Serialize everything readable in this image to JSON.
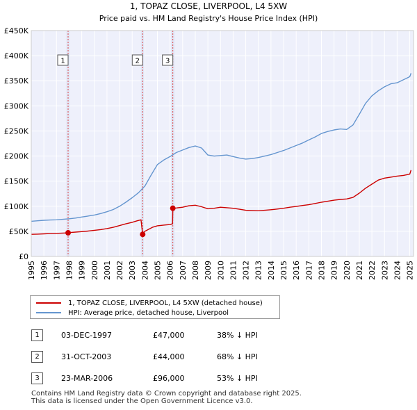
{
  "chart_data": {
    "type": "line",
    "title": "1, TOPAZ CLOSE, LIVERPOOL, L4 5XW",
    "subtitle": "Price paid vs. HM Land Registry's House Price Index (HPI)",
    "xlim": [
      1995,
      2025.3
    ],
    "ylim": [
      0,
      450000
    ],
    "x_ticks": [
      1995,
      1996,
      1997,
      1998,
      1999,
      2000,
      2001,
      2002,
      2003,
      2004,
      2005,
      2006,
      2007,
      2008,
      2009,
      2010,
      2011,
      2012,
      2013,
      2014,
      2015,
      2016,
      2017,
      2018,
      2019,
      2020,
      2021,
      2022,
      2023,
      2024,
      2025
    ],
    "x_tick_labels": [
      "1995",
      "1996",
      "1997",
      "1998",
      "1999",
      "2000",
      "2001",
      "2002",
      "2003",
      "2004",
      "2005",
      "2006",
      "2007",
      "2008",
      "2009",
      "2010",
      "2011",
      "2012",
      "2013",
      "2014",
      "2015",
      "2016",
      "2017",
      "2018",
      "2019",
      "2020",
      "2021",
      "2022",
      "2023",
      "2024",
      "2025"
    ],
    "y_ticks": [
      0,
      50000,
      100000,
      150000,
      200000,
      250000,
      300000,
      350000,
      400000,
      450000
    ],
    "y_tick_labels": [
      "£0",
      "£50K",
      "£100K",
      "£150K",
      "£200K",
      "£250K",
      "£300K",
      "£350K",
      "£400K",
      "£450K"
    ],
    "grid": true,
    "series": [
      {
        "name": "1, TOPAZ CLOSE, LIVERPOOL, L4 5XW (detached house)",
        "color": "#cc0000",
        "x": [
          1995,
          1995.5,
          1996,
          1996.5,
          1997,
          1997.5,
          1997.92,
          1998,
          1998.5,
          1999,
          1999.5,
          2000,
          2000.5,
          2001,
          2001.5,
          2002,
          2002.5,
          2003,
          2003.4,
          2003.7,
          2003.83,
          2003.9,
          2004,
          2004.3,
          2004.6,
          2005,
          2005.5,
          2006,
          2006.2,
          2006.22,
          2006.5,
          2007,
          2007.5,
          2008,
          2008.5,
          2009,
          2009.5,
          2010,
          2010.5,
          2011,
          2011.5,
          2012,
          2012.5,
          2013,
          2013.5,
          2014,
          2014.5,
          2015,
          2015.5,
          2016,
          2016.5,
          2017,
          2017.5,
          2018,
          2018.5,
          2019,
          2019.5,
          2020,
          2020.5,
          2021,
          2021.5,
          2022,
          2022.5,
          2023,
          2023.5,
          2024,
          2024.5,
          2025,
          2025.1
        ],
        "y": [
          44000,
          44500,
          45000,
          45500,
          46000,
          46500,
          47000,
          47500,
          48500,
          49500,
          50500,
          52000,
          53500,
          55500,
          58000,
          61500,
          65000,
          68000,
          71000,
          73000,
          44000,
          47000,
          50000,
          54000,
          58000,
          61000,
          62500,
          63500,
          65000,
          96000,
          96500,
          98000,
          101000,
          102000,
          99000,
          95000,
          96000,
          98000,
          97000,
          96000,
          94000,
          92000,
          91500,
          91000,
          92000,
          93000,
          94500,
          96000,
          98000,
          99500,
          101500,
          103000,
          105500,
          108000,
          110000,
          112000,
          113500,
          114500,
          117500,
          126000,
          136000,
          144000,
          152000,
          156000,
          158000,
          160000,
          161500,
          164000,
          172000
        ]
      },
      {
        "name": "HPI: Average price, detached house, Liverpool",
        "color": "#6495cf",
        "x": [
          1995,
          1995.5,
          1996,
          1996.5,
          1997,
          1997.5,
          1998,
          1998.5,
          1999,
          1999.5,
          2000,
          2000.5,
          2001,
          2001.5,
          2002,
          2002.5,
          2003,
          2003.5,
          2004,
          2004.5,
          2005,
          2005.5,
          2006,
          2006.5,
          2007,
          2007.5,
          2008,
          2008.5,
          2009,
          2009.5,
          2010,
          2010.5,
          2011,
          2011.5,
          2012,
          2012.5,
          2013,
          2013.5,
          2014,
          2014.5,
          2015,
          2015.5,
          2016,
          2016.5,
          2017,
          2017.5,
          2018,
          2018.5,
          2019,
          2019.5,
          2020,
          2020.5,
          2021,
          2021.5,
          2022,
          2022.5,
          2023,
          2023.5,
          2024,
          2024.5,
          2025,
          2025.1
        ],
        "y": [
          70000,
          71000,
          72000,
          72500,
          73000,
          74000,
          75000,
          76500,
          78500,
          80500,
          82500,
          85500,
          89000,
          93500,
          100000,
          108000,
          117000,
          127000,
          140000,
          162000,
          183000,
          192000,
          199000,
          207000,
          212000,
          217000,
          220000,
          216000,
          202000,
          200000,
          201000,
          202000,
          199000,
          196000,
          194000,
          195000,
          197000,
          200000,
          203000,
          207000,
          211000,
          216000,
          221000,
          226000,
          232000,
          238000,
          245000,
          249000,
          252000,
          254000,
          253000,
          262000,
          283000,
          305000,
          320000,
          330000,
          338000,
          344000,
          346000,
          352000,
          358000,
          365000
        ]
      }
    ],
    "sales": [
      {
        "label": "1",
        "x": 1997.92,
        "y": 47000
      },
      {
        "label": "2",
        "x": 2003.83,
        "y": 44000
      },
      {
        "label": "3",
        "x": 2006.22,
        "y": 96000
      }
    ]
  },
  "legend": {
    "property_label": "1, TOPAZ CLOSE, LIVERPOOL, L4 5XW (detached house)",
    "hpi_label": "HPI: Average price, detached house, Liverpool"
  },
  "transactions": [
    {
      "num": "1",
      "date": "03-DEC-1997",
      "price": "£47,000",
      "hpi": "38% ↓ HPI"
    },
    {
      "num": "2",
      "date": "31-OCT-2003",
      "price": "£44,000",
      "hpi": "68% ↓ HPI"
    },
    {
      "num": "3",
      "date": "23-MAR-2006",
      "price": "£96,000",
      "hpi": "53% ↓ HPI"
    }
  ],
  "footer": {
    "line1": "Contains HM Land Registry data © Crown copyright and database right 2025.",
    "line2": "This data is licensed under the Open Government Licence v3.0."
  }
}
